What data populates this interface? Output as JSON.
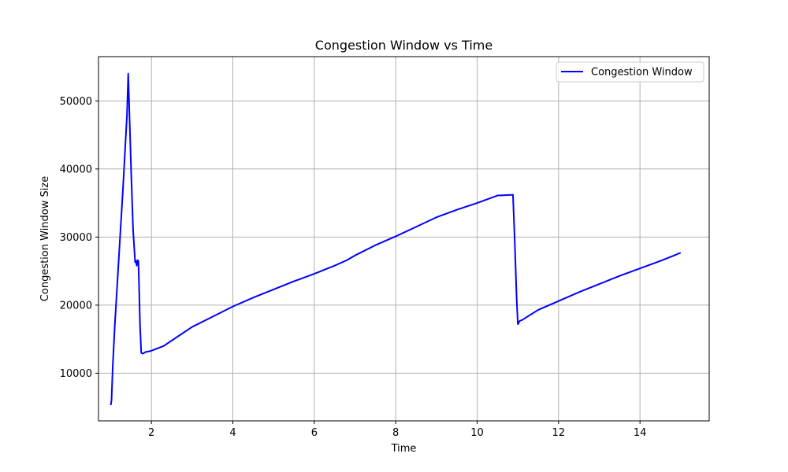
{
  "chart_data": {
    "type": "line",
    "title": "Congestion Window vs Time",
    "xlabel": "Time",
    "ylabel": "Congestion Window Size",
    "xlim": [
      0.7,
      15.7
    ],
    "ylim": [
      3000,
      56500
    ],
    "xticks": [
      2,
      4,
      6,
      8,
      10,
      12,
      14
    ],
    "yticks": [
      10000,
      20000,
      30000,
      40000,
      50000
    ],
    "grid": true,
    "legend_position": "top-right",
    "series": [
      {
        "name": "Congestion Window",
        "color": "#0000ff",
        "x": [
          1.0,
          1.02,
          1.05,
          1.1,
          1.2,
          1.3,
          1.4,
          1.43,
          1.47,
          1.5,
          1.55,
          1.6,
          1.62,
          1.64,
          1.66,
          1.68,
          1.7,
          1.72,
          1.75,
          1.78,
          1.8,
          1.85,
          2.0,
          2.3,
          2.5,
          3.0,
          3.5,
          4.0,
          4.5,
          5.0,
          5.5,
          6.0,
          6.5,
          6.8,
          7.0,
          7.5,
          8.0,
          8.5,
          9.0,
          9.5,
          10.0,
          10.5,
          10.88,
          10.92,
          10.97,
          11.0,
          11.05,
          11.1,
          11.5,
          12.0,
          12.5,
          13.0,
          13.5,
          14.0,
          14.5,
          14.8,
          15.0
        ],
        "y": [
          5300,
          6000,
          11000,
          17000,
          27000,
          37000,
          48000,
          54000,
          46000,
          40000,
          31000,
          26300,
          26500,
          25800,
          26600,
          26500,
          22000,
          17000,
          13000,
          12900,
          12900,
          13100,
          13300,
          14000,
          14800,
          16800,
          18300,
          19800,
          21100,
          22300,
          23500,
          24600,
          25800,
          26600,
          27300,
          28800,
          30100,
          31500,
          32900,
          34000,
          35000,
          36100,
          36200,
          30000,
          21000,
          17200,
          17700,
          17800,
          19300,
          20600,
          21900,
          23100,
          24300,
          25400,
          26500,
          27200,
          27700
        ]
      }
    ]
  }
}
